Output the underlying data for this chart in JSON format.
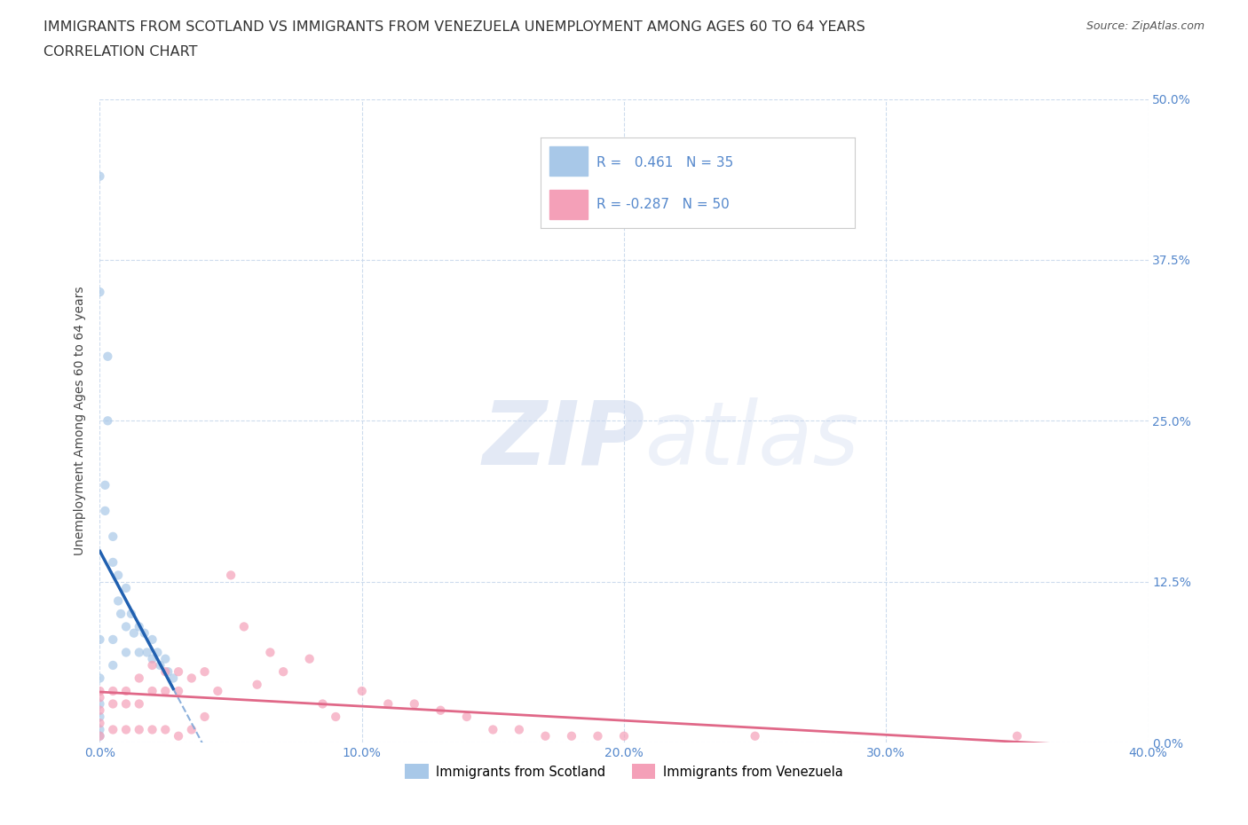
{
  "title_line1": "IMMIGRANTS FROM SCOTLAND VS IMMIGRANTS FROM VENEZUELA UNEMPLOYMENT AMONG AGES 60 TO 64 YEARS",
  "title_line2": "CORRELATION CHART",
  "source": "Source: ZipAtlas.com",
  "ylabel": "Unemployment Among Ages 60 to 64 years",
  "xlim": [
    0.0,
    0.4
  ],
  "ylim": [
    0.0,
    0.5
  ],
  "xticks": [
    0.0,
    0.1,
    0.2,
    0.3,
    0.4
  ],
  "xticklabels": [
    "0.0%",
    "10.0%",
    "20.0%",
    "30.0%",
    "40.0%"
  ],
  "yticks": [
    0.0,
    0.125,
    0.25,
    0.375,
    0.5
  ],
  "yticklabels": [
    "0.0%",
    "12.5%",
    "25.0%",
    "37.5%",
    "50.0%"
  ],
  "scotland_color": "#a8c8e8",
  "venezuela_color": "#f4a0b8",
  "scotland_line_color": "#2060b0",
  "scotland_dash_color": "#80a8d8",
  "venezuela_line_color": "#e06888",
  "scatter_alpha": 0.7,
  "scatter_size": 55,
  "R_scotland": 0.461,
  "N_scotland": 35,
  "R_venezuela": -0.287,
  "N_venezuela": 50,
  "scotland_points_x": [
    0.0,
    0.0,
    0.0,
    0.0,
    0.0,
    0.0,
    0.0,
    0.0,
    0.002,
    0.002,
    0.003,
    0.003,
    0.005,
    0.005,
    0.005,
    0.005,
    0.007,
    0.007,
    0.008,
    0.01,
    0.01,
    0.01,
    0.012,
    0.013,
    0.015,
    0.015,
    0.017,
    0.018,
    0.02,
    0.02,
    0.022,
    0.023,
    0.025,
    0.026,
    0.028
  ],
  "scotland_points_y": [
    0.44,
    0.35,
    0.08,
    0.05,
    0.03,
    0.02,
    0.01,
    0.005,
    0.2,
    0.18,
    0.3,
    0.25,
    0.16,
    0.14,
    0.08,
    0.06,
    0.13,
    0.11,
    0.1,
    0.12,
    0.09,
    0.07,
    0.1,
    0.085,
    0.09,
    0.07,
    0.085,
    0.07,
    0.08,
    0.065,
    0.07,
    0.06,
    0.065,
    0.055,
    0.05
  ],
  "venezuela_points_x": [
    0.0,
    0.0,
    0.0,
    0.0,
    0.0,
    0.005,
    0.005,
    0.005,
    0.01,
    0.01,
    0.01,
    0.015,
    0.015,
    0.015,
    0.02,
    0.02,
    0.02,
    0.025,
    0.025,
    0.025,
    0.03,
    0.03,
    0.03,
    0.035,
    0.035,
    0.04,
    0.04,
    0.045,
    0.05,
    0.055,
    0.06,
    0.065,
    0.07,
    0.08,
    0.085,
    0.09,
    0.1,
    0.11,
    0.12,
    0.13,
    0.14,
    0.15,
    0.16,
    0.17,
    0.18,
    0.19,
    0.2,
    0.25,
    0.35,
    0.37
  ],
  "venezuela_points_y": [
    0.04,
    0.035,
    0.025,
    0.015,
    0.005,
    0.04,
    0.03,
    0.01,
    0.04,
    0.03,
    0.01,
    0.05,
    0.03,
    0.01,
    0.06,
    0.04,
    0.01,
    0.055,
    0.04,
    0.01,
    0.055,
    0.04,
    0.005,
    0.05,
    0.01,
    0.055,
    0.02,
    0.04,
    0.13,
    0.09,
    0.045,
    0.07,
    0.055,
    0.065,
    0.03,
    0.02,
    0.04,
    0.03,
    0.03,
    0.025,
    0.02,
    0.01,
    0.01,
    0.005,
    0.005,
    0.005,
    0.005,
    0.005,
    0.005,
    -0.005
  ],
  "watermark_zip": "ZIP",
  "watermark_atlas": "atlas",
  "legend_label_scotland": "Immigrants from Scotland",
  "legend_label_venezuela": "Immigrants from Venezuela",
  "title_fontsize": 11.5,
  "axis_label_fontsize": 10,
  "tick_fontsize": 10,
  "tick_color": "#5588cc",
  "grid_color": "#c8d8ec",
  "background_color": "#ffffff"
}
